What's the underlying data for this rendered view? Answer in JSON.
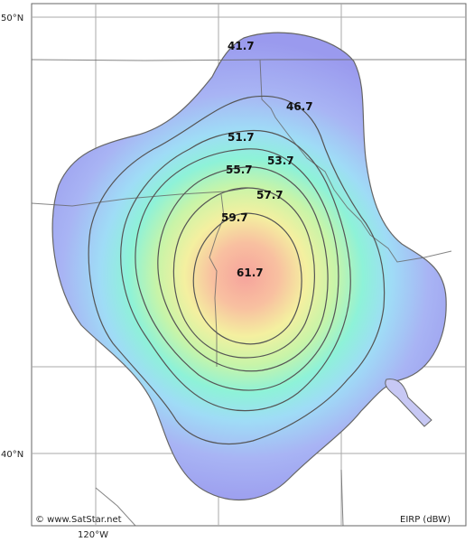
{
  "map": {
    "lat_labels": {
      "top": "50°N",
      "bottom": "40°N"
    },
    "lon_label": "120°W",
    "copyright": "© www.SatStar.net",
    "legend_unit": "EIRP (dBW)"
  },
  "contours": [
    {
      "value": 41.7,
      "label": "41.7"
    },
    {
      "value": 46.7,
      "label": "46.7"
    },
    {
      "value": 51.7,
      "label": "51.7"
    },
    {
      "value": 53.7,
      "label": "53.7"
    },
    {
      "value": 55.7,
      "label": "55.7"
    },
    {
      "value": 57.7,
      "label": "57.7"
    },
    {
      "value": 59.7,
      "label": "59.7"
    },
    {
      "value": 61.7,
      "label": "61.7"
    }
  ],
  "colors": {
    "frame": "#666666",
    "graticule": "#999999",
    "border": "#555555",
    "contour_line": "#555555",
    "outer_fill": "#9a9aee",
    "core_fill": "#f4a8a0"
  }
}
